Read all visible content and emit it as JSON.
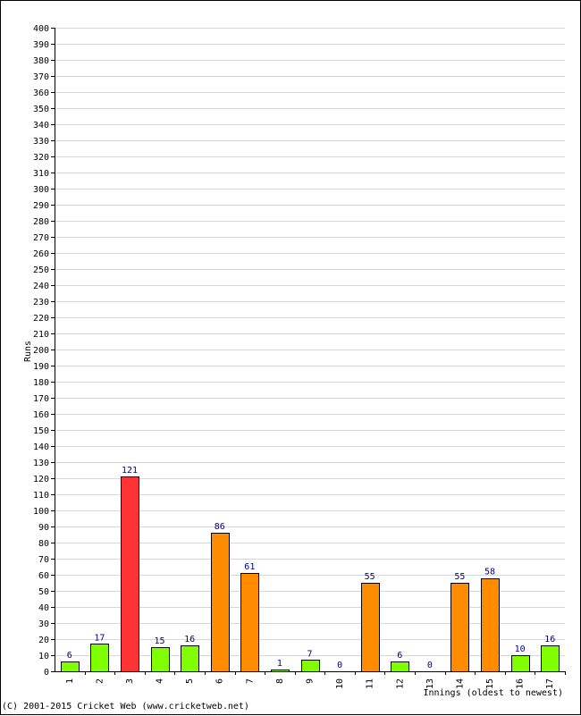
{
  "chart_data": {
    "type": "bar",
    "ylabel": "Runs",
    "xlabel": "Innings (oldest to newest)",
    "ylim": [
      0,
      400
    ],
    "ytick_step": 10,
    "grid": true,
    "categories": [
      "1",
      "2",
      "3",
      "4",
      "5",
      "6",
      "7",
      "8",
      "9",
      "10",
      "11",
      "12",
      "13",
      "14",
      "15",
      "16",
      "17"
    ],
    "values": [
      6,
      17,
      121,
      15,
      16,
      86,
      61,
      1,
      7,
      0,
      55,
      6,
      0,
      55,
      58,
      10,
      16
    ],
    "bar_colors": [
      "#80ff00",
      "#80ff00",
      "#ff3333",
      "#80ff00",
      "#80ff00",
      "#ff8c00",
      "#ff8c00",
      "#80ff00",
      "#80ff00",
      "#80ff00",
      "#ff8c00",
      "#80ff00",
      "#80ff00",
      "#ff8c00",
      "#ff8c00",
      "#80ff00",
      "#80ff00"
    ],
    "color_key": {
      "under_50": "#80ff00",
      "50_to_99": "#ff8c00",
      "100_plus": "#ff3333"
    }
  },
  "footer": "(C) 2001-2015 Cricket Web (www.cricketweb.net)"
}
